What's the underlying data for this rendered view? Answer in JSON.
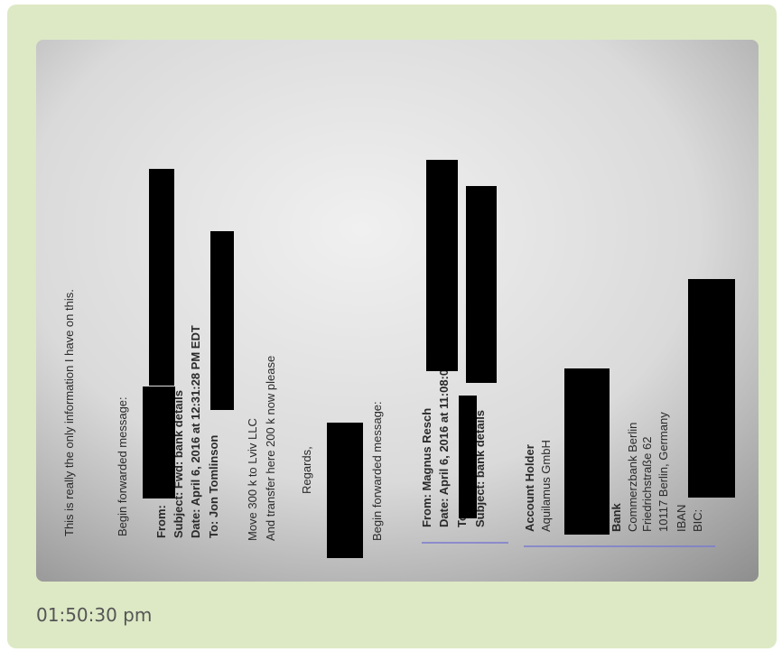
{
  "message": {
    "image": {
      "lines": [
        "This is really the only information I have on this.",
        "Begin forwarded message:",
        "From:",
        "Subject: Fwd: bank details",
        "Date: April 6, 2016 at 12:31:28 PM EDT",
        "To: Jon Tomlinson",
        "Move 300 k to Lviv LLC",
        "And transfer here 200 k now please",
        "Regards,",
        "Begin forwarded message:",
        "From: Magnus Resch",
        "Date: April 6, 2016 at 11:08:02 AM EDT",
        "To:",
        "Subject: bank details",
        "Account Holder",
        "Aquilamus GmbH",
        "Bank",
        "Commerzbank Berlin",
        "Friedrichstraße 62",
        "10117 Berlin, Germany",
        "IBAN",
        "BIC:"
      ]
    },
    "time": "01:50:30 pm"
  }
}
